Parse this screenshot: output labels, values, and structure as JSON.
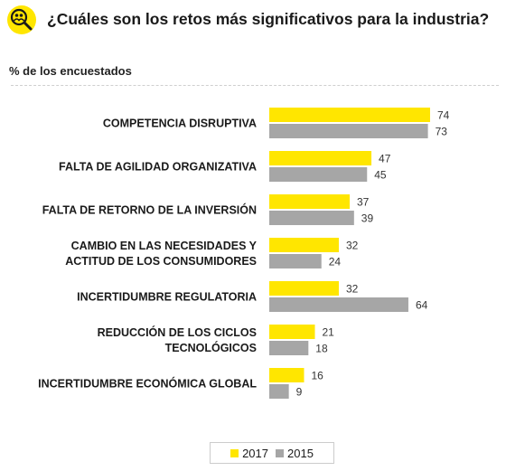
{
  "header": {
    "title": "¿Cuáles son los retos más significativos para la industria?",
    "icon": "magnifier-people-icon"
  },
  "colors": {
    "series_2017": "#ffe600",
    "series_2015": "#a6a6a6",
    "label": "#1a1a1a"
  },
  "chart_data": {
    "type": "bar",
    "orientation": "horizontal",
    "subtitle": "% de los encuestados",
    "categories": [
      [
        "COMPETENCIA DISRUPTIVA"
      ],
      [
        "FALTA DE AGILIDAD ORGANIZATIVA"
      ],
      [
        "FALTA DE RETORNO DE LA INVERSIÓN"
      ],
      [
        "CAMBIO EN LAS NECESIDADES Y",
        "ACTITUD DE LOS CONSUMIDORES"
      ],
      [
        "INCERTIDUMBRE REGULATORIA"
      ],
      [
        "REDUCCIÓN DE LOS CICLOS",
        "TECNOLÓGICOS"
      ],
      [
        "INCERTIDUMBRE ECONÓMICA GLOBAL"
      ]
    ],
    "series": [
      {
        "name": "2017",
        "color": "#ffe600",
        "values": [
          74,
          47,
          37,
          32,
          32,
          21,
          16
        ]
      },
      {
        "name": "2015",
        "color": "#a6a6a6",
        "values": [
          73,
          45,
          39,
          24,
          64,
          18,
          9
        ]
      }
    ],
    "xlim": [
      0,
      100
    ],
    "grid": false,
    "legend": "bottom-center"
  }
}
